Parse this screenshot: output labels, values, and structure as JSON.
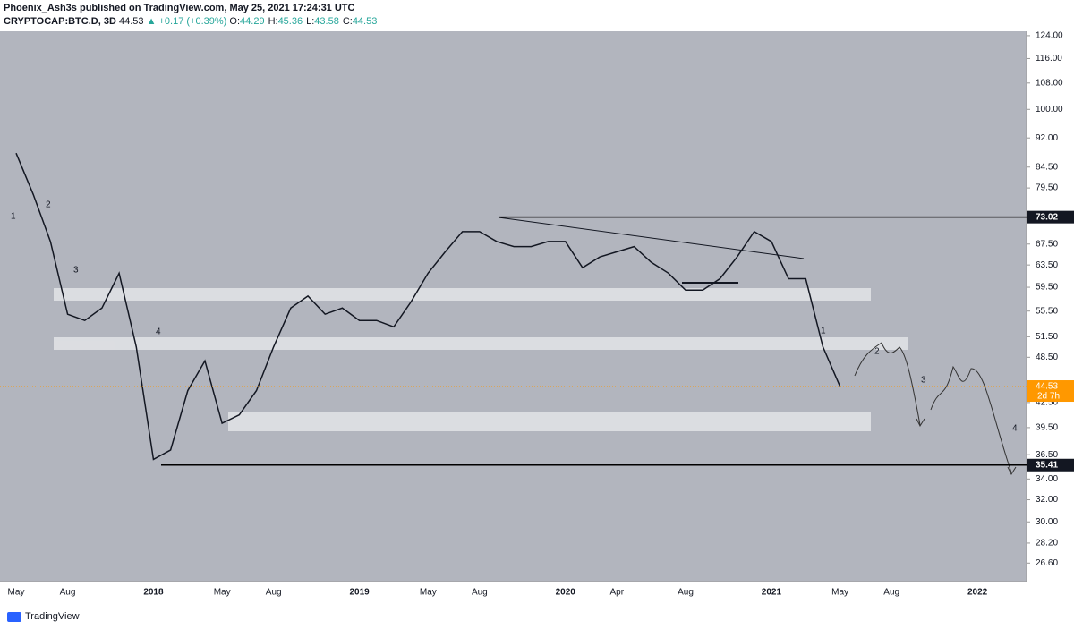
{
  "header": {
    "publisher": "Phoenix_Ash3s published on TradingView.com, May 25, 2021 17:24:31 UTC",
    "symbol": "CRYPTOCAP:BTC.D, 3D",
    "last": "44.53",
    "change": "▲ +0.17 (+0.39%)",
    "ohlc": [
      {
        "k": "O:",
        "v": "44.29"
      },
      {
        "k": "H:",
        "v": "45.36"
      },
      {
        "k": "L:",
        "v": "43.58"
      },
      {
        "k": "C:",
        "v": "44.53"
      }
    ]
  },
  "footer": {
    "brand": "TradingView"
  },
  "chart_data": {
    "type": "line",
    "log_scale": true,
    "color": "#131722",
    "categories": [
      "May",
      null,
      null,
      "Aug",
      null,
      null,
      null,
      null,
      "2018",
      null,
      null,
      null,
      "May",
      null,
      null,
      "Aug",
      null,
      null,
      null,
      null,
      "2019",
      null,
      null,
      null,
      "May",
      null,
      null,
      "Aug",
      null,
      null,
      null,
      null,
      "2020",
      null,
      null,
      "Apr",
      null,
      null,
      null,
      "Aug",
      null,
      null,
      null,
      null,
      "2021",
      null,
      null,
      null,
      "May",
      null,
      null,
      "Aug",
      null,
      null,
      null,
      null,
      "2022",
      null,
      null
    ],
    "values": [
      88,
      78,
      68,
      55,
      54,
      56,
      62,
      50,
      36,
      37,
      44,
      48,
      40,
      41,
      44,
      50,
      56,
      58,
      55,
      56,
      54,
      54,
      53,
      57,
      62,
      66,
      70,
      70,
      68,
      67,
      67,
      68,
      68,
      63,
      65,
      66,
      67,
      64,
      62,
      59,
      59,
      61,
      65,
      70,
      68,
      61,
      61,
      50,
      44.53,
      null,
      null,
      null,
      null,
      null,
      null,
      null,
      null,
      null,
      null
    ],
    "ylim": [
      25.2,
      125.6
    ],
    "yticks": [
      {
        "value": 124,
        "label": "124.00"
      },
      {
        "value": 116,
        "label": "116.00"
      },
      {
        "value": 108,
        "label": "108.00"
      },
      {
        "value": 100,
        "label": "100.00"
      },
      {
        "value": 92,
        "label": "92.00"
      },
      {
        "value": 84.5,
        "label": "84.50"
      },
      {
        "value": 79.5,
        "label": "79.50"
      },
      {
        "value": 67.5,
        "label": "67.50"
      },
      {
        "value": 63.5,
        "label": "63.50"
      },
      {
        "value": 59.5,
        "label": "59.50"
      },
      {
        "value": 55.5,
        "label": "55.50"
      },
      {
        "value": 51.5,
        "label": "51.50"
      },
      {
        "value": 48.5,
        "label": "48.50"
      },
      {
        "value": 42.5,
        "label": "42.50"
      },
      {
        "value": 39.5,
        "label": "39.50"
      },
      {
        "value": 36.5,
        "label": "36.50"
      },
      {
        "value": 34,
        "label": "34.00"
      },
      {
        "value": 32,
        "label": "32.00"
      },
      {
        "value": 30,
        "label": "30.00"
      },
      {
        "value": 28.2,
        "label": "28.20"
      },
      {
        "value": 26.6,
        "label": "26.60"
      }
    ],
    "levels": [
      {
        "value": 73.02,
        "label": "73.02"
      },
      {
        "value": 35.41,
        "label": "35.41"
      }
    ],
    "current": {
      "value": 44.53,
      "label": "44.53",
      "countdown": "2d 7h"
    },
    "waves": [
      "1",
      "2",
      "3",
      "4",
      "1",
      "2",
      "3",
      "4"
    ]
  }
}
